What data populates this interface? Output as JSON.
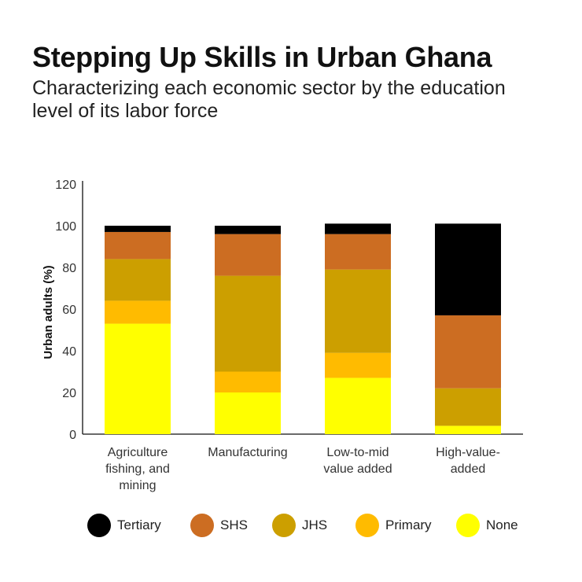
{
  "title": "Stepping Up Skills in Urban Ghana",
  "subtitle": "Characterizing each economic sector by the education level of its labor force",
  "chart_data": {
    "type": "bar",
    "stacked": true,
    "categories": [
      [
        "Agriculture",
        "fishing, and",
        "mining"
      ],
      [
        "Manufacturing"
      ],
      [
        "Low-to-mid",
        "value added"
      ],
      [
        "High-value-",
        "added"
      ]
    ],
    "series": [
      {
        "name": "None",
        "color": "#ffff00",
        "values": [
          53,
          20,
          27,
          4
        ]
      },
      {
        "name": "Primary",
        "color": "#ffbb00",
        "values": [
          11,
          10,
          12,
          0
        ]
      },
      {
        "name": "JHS",
        "color": "#cc9f00",
        "values": [
          20,
          46,
          40,
          18
        ]
      },
      {
        "name": "SHS",
        "color": "#cc6d22",
        "values": [
          13,
          20,
          17,
          35
        ]
      },
      {
        "name": "Tertiary",
        "color": "#000000",
        "values": [
          3,
          4,
          5,
          44
        ]
      }
    ],
    "xlabel": "",
    "ylabel": "Urban adults (%)",
    "ylim": [
      0,
      120
    ],
    "yticks": [
      0,
      20,
      40,
      60,
      80,
      100,
      120
    ],
    "grid": false,
    "legend_position": "bottom",
    "legend_order": [
      "Tertiary",
      "SHS",
      "JHS",
      "Primary",
      "None"
    ]
  }
}
